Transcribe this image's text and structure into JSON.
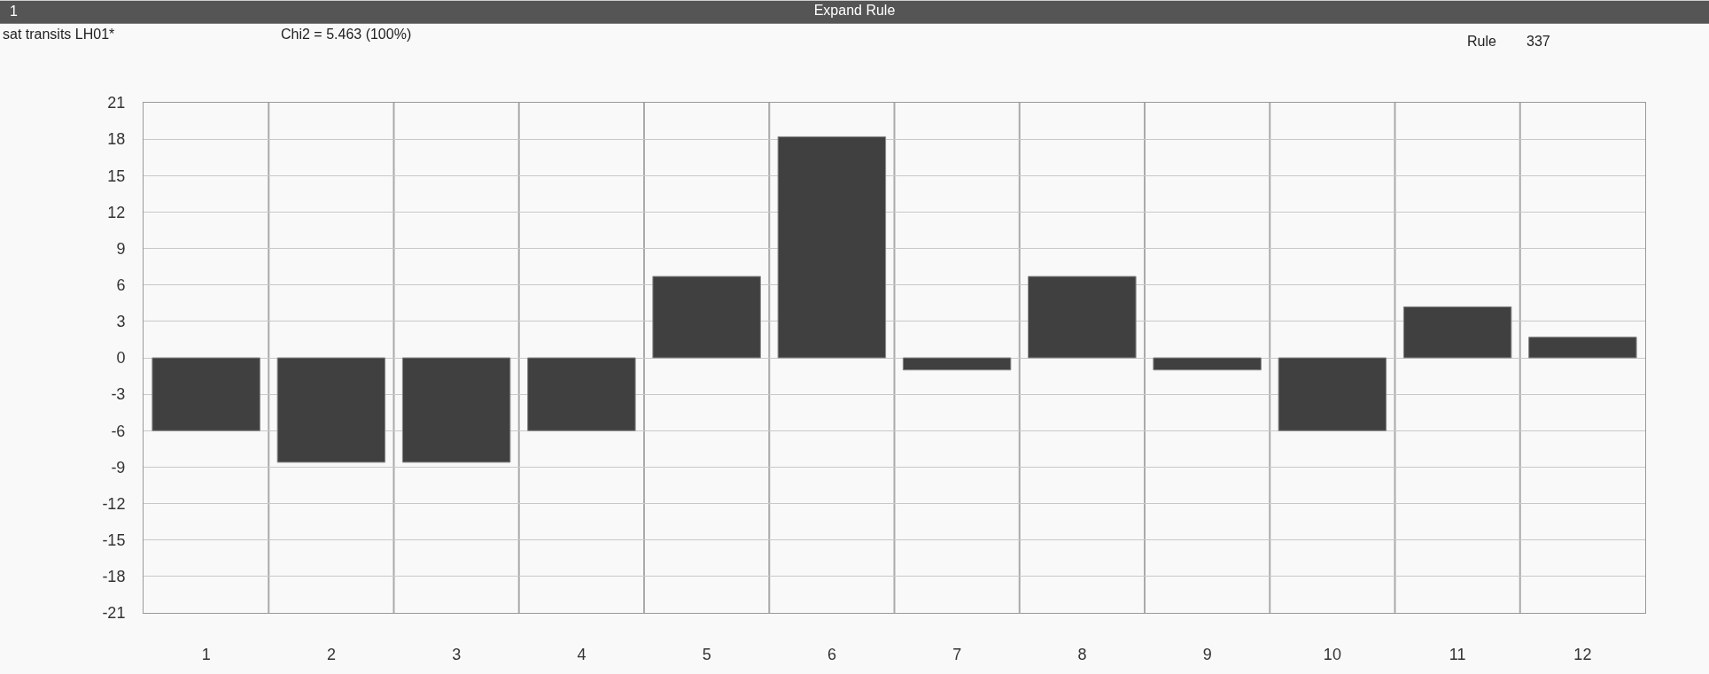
{
  "chart_data": {
    "type": "bar",
    "title": "Expand Rule",
    "annotations": [
      "1",
      "sat transits LH01*",
      "Chi2 = 5.463 (100%)",
      "Rule",
      "337"
    ],
    "categories": [
      "1",
      "2",
      "3",
      "4",
      "5",
      "6",
      "7",
      "8",
      "9",
      "10",
      "11",
      "12"
    ],
    "values": [
      -6.0,
      -8.6,
      -8.6,
      -6.0,
      6.7,
      18.2,
      -1.0,
      6.7,
      -1.0,
      -6.0,
      4.2,
      1.7
    ],
    "color": "#404040",
    "ylim": [
      -21,
      21
    ],
    "yticks": [
      -21,
      -18,
      -15,
      -12,
      -9,
      -6,
      -3,
      0,
      3,
      6,
      9,
      12,
      15,
      18,
      21
    ],
    "grid": true
  }
}
